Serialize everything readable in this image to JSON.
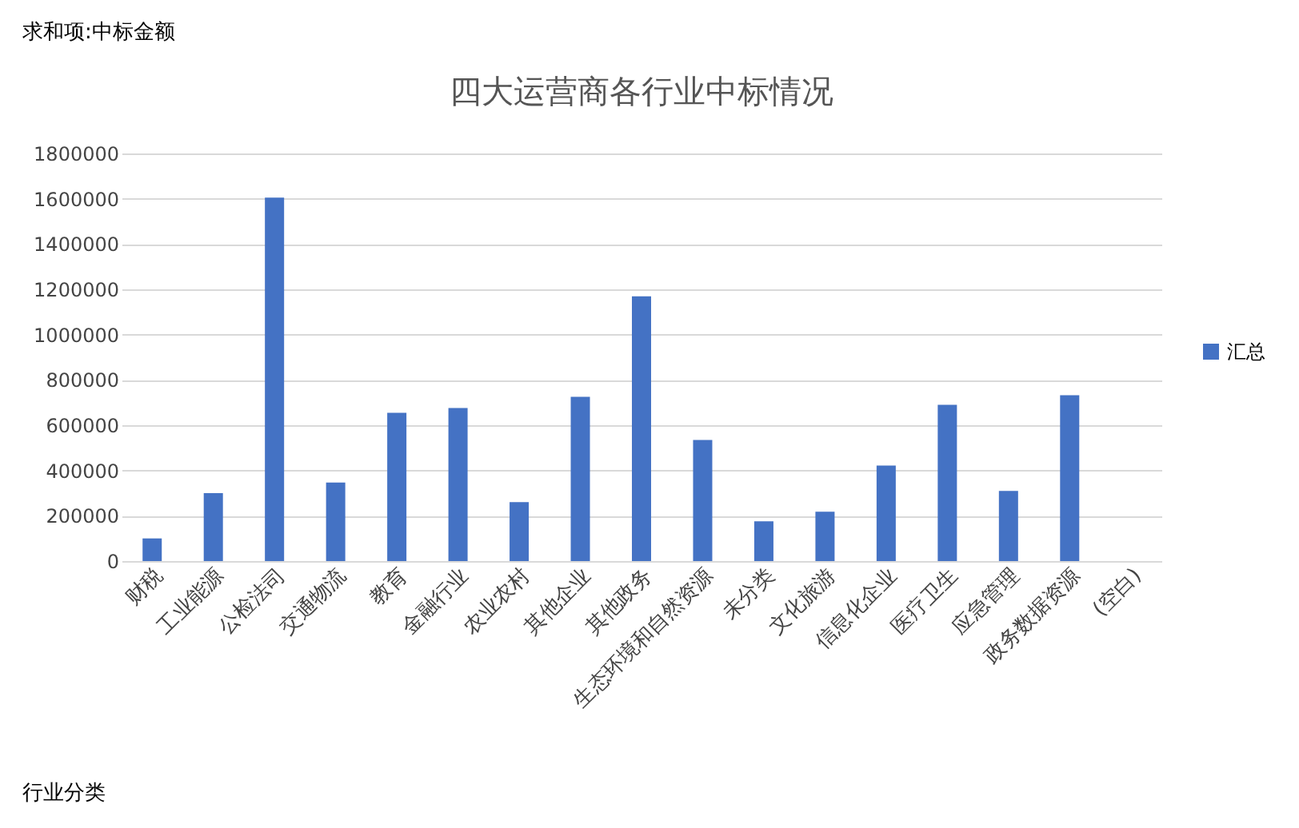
{
  "chart_data": {
    "type": "bar",
    "title": "四大运营商各行业中标情况",
    "categories": [
      "财税",
      "工业能源",
      "公检法司",
      "交通物流",
      "教育",
      "金融行业",
      "农业农村",
      "其他企业",
      "其他政务",
      "生态环境和自然资源",
      "未分类",
      "文化旅游",
      "信息化企业",
      "医疗卫生",
      "应急管理",
      "政务数据资源",
      "(空白)"
    ],
    "series": [
      {
        "name": "汇总",
        "color": "#4472c4",
        "values": [
          100000,
          300000,
          1605000,
          347000,
          655000,
          676000,
          260000,
          725000,
          1169000,
          535000,
          176000,
          218000,
          422000,
          690000,
          310000,
          732000,
          null
        ]
      }
    ],
    "ylim": [
      0,
      1800000
    ],
    "yticks": [
      0,
      200000,
      400000,
      600000,
      800000,
      1000000,
      1200000,
      1400000,
      1600000,
      1800000
    ],
    "grid": "y",
    "legend": "right",
    "annotations": [
      "求和项:中标金额",
      "行业分类"
    ]
  }
}
